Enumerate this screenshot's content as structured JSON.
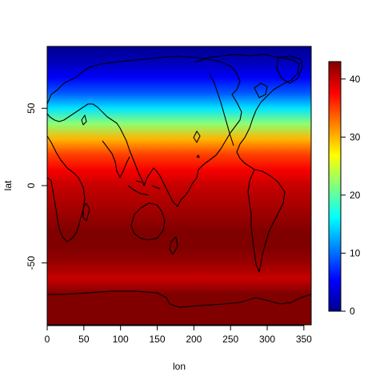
{
  "axes": {
    "xlabel": "lon",
    "ylabel": "lat",
    "xlim": [
      0,
      360
    ],
    "ylim": [
      -90,
      90
    ],
    "xticks": [
      "0",
      "50",
      "100",
      "150",
      "200",
      "250",
      "300",
      "350"
    ],
    "yticks": [
      "-50",
      "0",
      "50"
    ]
  },
  "colorbar": {
    "range": [
      0,
      43
    ],
    "ticks": [
      "0",
      "10",
      "20",
      "30",
      "40"
    ]
  },
  "field": {
    "lat": [
      90,
      80,
      70,
      60,
      50,
      40,
      30,
      20,
      10,
      0,
      -10,
      -20,
      -30,
      -40,
      -50,
      -60,
      -70,
      -80,
      -90
    ],
    "value": [
      0,
      2,
      5,
      9,
      15,
      22,
      30,
      35,
      38,
      40,
      41,
      42,
      43,
      43,
      42,
      40,
      43,
      43,
      43
    ]
  },
  "palette": [
    "#00008f",
    "#0000ff",
    "#0080ff",
    "#00ffff",
    "#80ff80",
    "#ffff00",
    "#ff8000",
    "#ff0000",
    "#800000"
  ],
  "coastline_color": "#000000"
}
